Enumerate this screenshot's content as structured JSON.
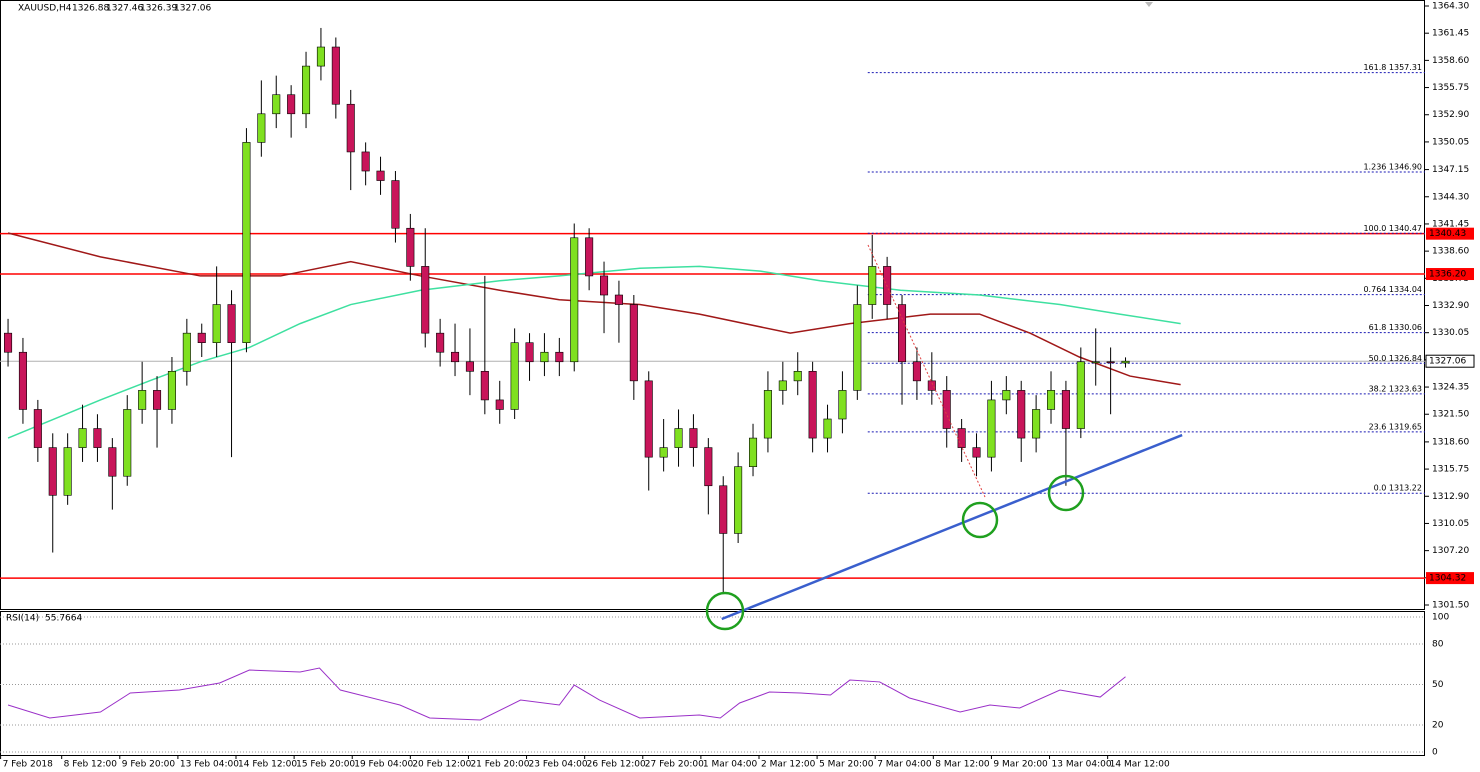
{
  "chart_data": {
    "type": "candlestick",
    "title": "XAUUSD,H4",
    "bull_color": "#7fe020",
    "bear_color": "#c8155a",
    "outline": "#000000",
    "xlim": [
      -0.54,
      95.1
    ],
    "ylim": [
      1301.08,
      1364.93
    ],
    "yticks": [
      {
        "value": 1364.3,
        "label": "1364.30"
      },
      {
        "value": 1361.45,
        "label": "1361.45"
      },
      {
        "value": 1358.6,
        "label": "1358.60"
      },
      {
        "value": 1355.75,
        "label": "1355.75"
      },
      {
        "value": 1352.9,
        "label": "1352.90"
      },
      {
        "value": 1350.05,
        "label": "1350.05"
      },
      {
        "value": 1347.15,
        "label": "1347.15"
      },
      {
        "value": 1344.3,
        "label": "1344.30"
      },
      {
        "value": 1341.45,
        "label": "1341.45"
      },
      {
        "value": 1338.6,
        "label": "1338.60"
      },
      {
        "value": 1335.75,
        "label": "1335.75"
      },
      {
        "value": 1332.9,
        "label": "1332.90"
      },
      {
        "value": 1330.05,
        "label": "1330.05"
      },
      {
        "value": 1327.2,
        "label": "1327.20"
      },
      {
        "value": 1324.35,
        "label": "1324.35"
      },
      {
        "value": 1321.5,
        "label": "1321.50"
      },
      {
        "value": 1318.6,
        "label": "1318.60"
      },
      {
        "value": 1315.75,
        "label": "1315.75"
      },
      {
        "value": 1312.9,
        "label": "1312.90"
      },
      {
        "value": 1310.05,
        "label": "1310.05"
      },
      {
        "value": 1307.2,
        "label": "1307.20"
      },
      {
        "value": 1304.35,
        "label": "1304.35"
      },
      {
        "value": 1301.5,
        "label": "1301.50"
      }
    ],
    "xticks": [
      {
        "value": -0.5,
        "label": "7 Feb 2018"
      },
      {
        "value": 3.6,
        "label": "8 Feb 12:00"
      },
      {
        "value": 7.5,
        "label": "9 Feb 20:00"
      },
      {
        "value": 11.4,
        "label": "13 Feb 04:00"
      },
      {
        "value": 15.3,
        "label": "14 Feb 12:00"
      },
      {
        "value": 19.2,
        "label": "15 Feb 20:00"
      },
      {
        "value": 23.1,
        "label": "19 Feb 04:00"
      },
      {
        "value": 27,
        "label": "20 Feb 12:00"
      },
      {
        "value": 30.9,
        "label": "21 Feb 20:00"
      },
      {
        "value": 34.8,
        "label": "23 Feb 04:00"
      },
      {
        "value": 38.7,
        "label": "26 Feb 12:00"
      },
      {
        "value": 42.6,
        "label": "27 Feb 20:00"
      },
      {
        "value": 46.5,
        "label": "1 Mar 04:00"
      },
      {
        "value": 50.4,
        "label": "2 Mar 12:00"
      },
      {
        "value": 54.3,
        "label": "5 Mar 20:00"
      },
      {
        "value": 58.2,
        "label": "7 Mar 04:00"
      },
      {
        "value": 62.1,
        "label": "8 Mar 12:00"
      },
      {
        "value": 66,
        "label": "9 Mar 20:00"
      },
      {
        "value": 69.9,
        "label": "13 Mar 04:00"
      },
      {
        "value": 73.8,
        "label": "14 Mar 12:00"
      }
    ],
    "candles": [
      [
        1330,
        1331.5,
        1326.5,
        1328
      ],
      [
        1328,
        1329.5,
        1320.5,
        1322
      ],
      [
        1322,
        1323,
        1316.5,
        1318
      ],
      [
        1318,
        1319.5,
        1307,
        1313
      ],
      [
        1313,
        1319.5,
        1312,
        1318
      ],
      [
        1318,
        1322.5,
        1316.5,
        1320
      ],
      [
        1320,
        1321.5,
        1316.5,
        1318
      ],
      [
        1318,
        1319,
        1311.5,
        1315
      ],
      [
        1315,
        1323.5,
        1314,
        1322
      ],
      [
        1322,
        1327,
        1320.5,
        1324
      ],
      [
        1324,
        1325.5,
        1318,
        1322
      ],
      [
        1322,
        1327.5,
        1320.5,
        1326
      ],
      [
        1326,
        1331.5,
        1324.5,
        1330
      ],
      [
        1330,
        1331,
        1327.5,
        1329
      ],
      [
        1329,
        1337,
        1327.5,
        1333
      ],
      [
        1333,
        1334.5,
        1317,
        1329
      ],
      [
        1329,
        1351.5,
        1328,
        1350
      ],
      [
        1350,
        1356.5,
        1348.5,
        1353
      ],
      [
        1353,
        1357,
        1351.5,
        1355
      ],
      [
        1355,
        1356,
        1350.5,
        1353
      ],
      [
        1353,
        1359.5,
        1351.5,
        1358
      ],
      [
        1358,
        1362,
        1356.5,
        1360
      ],
      [
        1360,
        1361,
        1352.5,
        1354
      ],
      [
        1354,
        1355.5,
        1345,
        1349
      ],
      [
        1349,
        1350,
        1345.5,
        1347
      ],
      [
        1347,
        1348.5,
        1344.5,
        1346
      ],
      [
        1346,
        1347,
        1339.5,
        1341
      ],
      [
        1341,
        1342.5,
        1335.5,
        1337
      ],
      [
        1337,
        1341,
        1328.5,
        1330
      ],
      [
        1330,
        1331.5,
        1326.5,
        1328
      ],
      [
        1328,
        1331,
        1325.5,
        1327
      ],
      [
        1327,
        1330.5,
        1323.5,
        1326
      ],
      [
        1326,
        1336,
        1321.5,
        1323
      ],
      [
        1323,
        1325,
        1320.5,
        1322
      ],
      [
        1322,
        1330.5,
        1321,
        1329
      ],
      [
        1329,
        1330,
        1325,
        1327
      ],
      [
        1327,
        1330,
        1325.5,
        1328
      ],
      [
        1328,
        1329.5,
        1325.5,
        1327
      ],
      [
        1327,
        1341.5,
        1326,
        1340
      ],
      [
        1340,
        1341,
        1334.5,
        1336
      ],
      [
        1336,
        1337.5,
        1330,
        1334
      ],
      [
        1334,
        1335.5,
        1329,
        1333
      ],
      [
        1333,
        1334,
        1323,
        1325
      ],
      [
        1325,
        1326,
        1313.5,
        1317
      ],
      [
        1317,
        1321,
        1315.5,
        1318
      ],
      [
        1318,
        1322,
        1316,
        1320
      ],
      [
        1320,
        1321.5,
        1316,
        1318
      ],
      [
        1318,
        1319,
        1311,
        1314
      ],
      [
        1314,
        1315,
        1302.8,
        1309
      ],
      [
        1309,
        1317.5,
        1308,
        1316
      ],
      [
        1316,
        1320.5,
        1315,
        1319
      ],
      [
        1319,
        1326,
        1317.5,
        1324
      ],
      [
        1324,
        1327,
        1322.5,
        1325
      ],
      [
        1325,
        1328,
        1323.5,
        1326
      ],
      [
        1326,
        1327,
        1317.5,
        1319
      ],
      [
        1319,
        1322.5,
        1317.5,
        1321
      ],
      [
        1321,
        1326,
        1319.5,
        1324
      ],
      [
        1324,
        1335,
        1323,
        1333
      ],
      [
        1333,
        1340.3,
        1331.5,
        1337
      ],
      [
        1337,
        1338,
        1331.5,
        1333
      ],
      [
        1333,
        1334,
        1322.5,
        1327
      ],
      [
        1327,
        1328.5,
        1323,
        1325
      ],
      [
        1325,
        1328,
        1322.5,
        1324
      ],
      [
        1324,
        1325.5,
        1318,
        1320
      ],
      [
        1320,
        1321,
        1316.5,
        1318
      ],
      [
        1318,
        1319.5,
        1315,
        1317
      ],
      [
        1317,
        1325,
        1315.5,
        1323
      ],
      [
        1323,
        1325.5,
        1321.5,
        1324
      ],
      [
        1324,
        1325,
        1316.5,
        1319
      ],
      [
        1319,
        1323.5,
        1317.5,
        1322
      ],
      [
        1322,
        1326,
        1320.5,
        1324
      ],
      [
        1324,
        1325,
        1314,
        1320
      ],
      [
        1320,
        1328.5,
        1319,
        1327
      ],
      [
        1327,
        1330.5,
        1324.5,
        1327
      ],
      [
        1327,
        1328.5,
        1321.5,
        1326.9
      ],
      [
        1326.88,
        1327.46,
        1326.39,
        1327.06
      ]
    ],
    "moving_averages": [
      {
        "color": "#a01818",
        "x": [
          0,
          6.2,
          12.9,
          18.3,
          23,
          27.7,
          33,
          37,
          42.4,
          46.4,
          52.5,
          56.5,
          61.9,
          65.2,
          68.6,
          71.9,
          75.3,
          78.7
        ],
        "values": [
          1340.5,
          1338,
          1336,
          1336,
          1337.5,
          1336,
          1334.5,
          1333.5,
          1333,
          1332,
          1330,
          1331,
          1332,
          1332,
          1330,
          1327.5,
          1325.5,
          1324.6
        ]
      },
      {
        "color": "#3ee0a0",
        "x": [
          0,
          6.2,
          9.5,
          12.9,
          16.2,
          19.6,
          23,
          27.7,
          33,
          37,
          42.4,
          46.4,
          50.5,
          54.5,
          59.9,
          65.2,
          70.6,
          74.6,
          78.7
        ],
        "values": [
          1319,
          1323,
          1325,
          1327,
          1328.5,
          1331,
          1333,
          1334.5,
          1335.5,
          1336,
          1336.8,
          1337,
          1336.5,
          1335.5,
          1334.5,
          1334,
          1333,
          1332,
          1331
        ]
      }
    ],
    "hlines": {
      "color": "#ff0000",
      "levels": [
        {
          "value": 1340.43,
          "label": "1340.43"
        },
        {
          "value": 1336.2,
          "label": "1336.20"
        },
        {
          "value": 1304.32,
          "label": "1304.32"
        }
      ]
    },
    "last_price": {
      "value": 1327.06,
      "label": "1327.06"
    },
    "fib": {
      "color": "#1a1ab4",
      "x_start": 57.7,
      "levels": [
        {
          "value": 1357.31,
          "label": "161.8 1357.31"
        },
        {
          "value": 1346.9,
          "label": "1.236 1346.90"
        },
        {
          "value": 1340.47,
          "label": "100.0 1340.47"
        },
        {
          "value": 1334.04,
          "label": "0.764 1334.04"
        },
        {
          "value": 1330.06,
          "label": "61.8 1330.06"
        },
        {
          "value": 1326.84,
          "label": "50.0 1326.84"
        },
        {
          "value": 1323.63,
          "label": "38.2 1323.63"
        },
        {
          "value": 1319.65,
          "label": "23.6 1319.65"
        },
        {
          "value": 1313.22,
          "label": "0.0 1313.22"
        }
      ]
    },
    "trendline": {
      "color": "#3a5fcd",
      "x": [
        47.9,
        78.8
      ],
      "values": [
        1300.03,
        1319.32
      ]
    },
    "rsi": {
      "name": "RSI(14)",
      "color": "#9a30c8",
      "ylim": [
        0,
        100
      ],
      "yticks": [
        100,
        80,
        50,
        20,
        0
      ],
      "x": [
        0,
        2.8,
        6.2,
        8.2,
        11.5,
        14.2,
        16.2,
        19.6,
        20.9,
        22.3,
        26.3,
        28.3,
        31.7,
        34.4,
        37,
        38,
        39.7,
        42.4,
        46.4,
        47.8,
        49.1,
        51.1,
        53.2,
        55.2,
        56.5,
        58.5,
        60.5,
        63.9,
        65.9,
        67.9,
        70.6,
        73.3,
        75
      ],
      "values": [
        34.8,
        25.2,
        29.6,
        43.7,
        45.9,
        51.1,
        60.7,
        59.3,
        62.2,
        45.9,
        34.8,
        25.2,
        23.7,
        38.5,
        34.8,
        49.6,
        38.5,
        25.2,
        27.4,
        25.2,
        36.3,
        44.4,
        43.7,
        42.2,
        53.3,
        51.9,
        40,
        29.6,
        34.8,
        32.6,
        45.9,
        40.7,
        55.7664
      ]
    }
  }
}
